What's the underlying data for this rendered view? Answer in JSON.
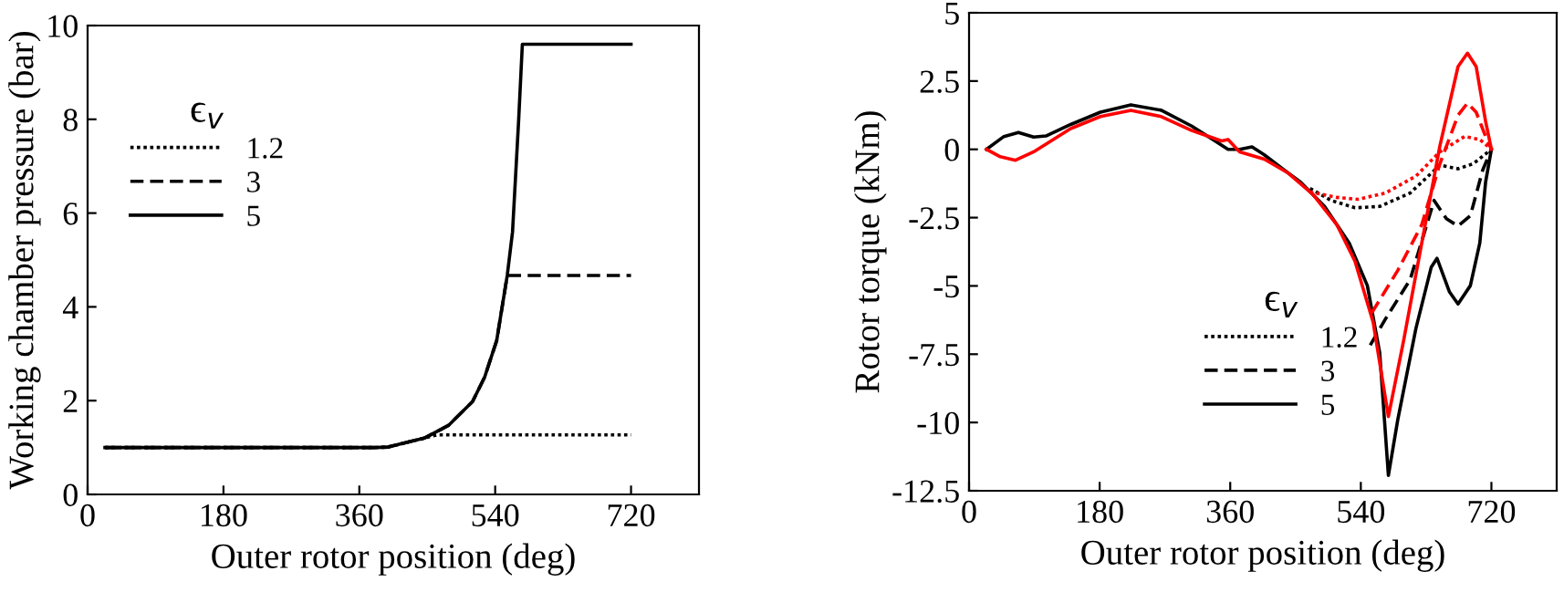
{
  "chart_data": [
    {
      "type": "line",
      "xlabel": "Outer rotor position (deg)",
      "ylabel": "Working chamber pressure (bar)",
      "legend_title": "ϵ$_{v}$",
      "legend": "top left",
      "grid": false,
      "xlim": [
        0,
        810
      ],
      "xticks": [
        0,
        180,
        360,
        540,
        720
      ],
      "ylim": [
        0,
        10
      ],
      "yticks": [
        0,
        2,
        4,
        6,
        8,
        10
      ],
      "series": [
        {
          "name": "1.2",
          "color": "#000000",
          "line_style": "dotted",
          "x": [
            23,
            380,
            398,
            446,
            463,
            720
          ],
          "values": [
            1,
            1,
            1.01,
            1.2,
            1.27,
            1.27
          ]
        },
        {
          "name": "3",
          "color": "#000000",
          "line_style": "dashed",
          "x": [
            23,
            380,
            398,
            446,
            478,
            510,
            526,
            542,
            556,
            720
          ],
          "values": [
            1,
            1,
            1.01,
            1.2,
            1.47,
            1.98,
            2.5,
            3.28,
            4.67,
            4.67
          ]
        },
        {
          "name": "5",
          "color": "#000000",
          "line_style": "solid",
          "x": [
            23,
            380,
            398,
            446,
            478,
            510,
            526,
            542,
            556,
            563,
            571,
            576,
            720
          ],
          "values": [
            1,
            1,
            1.01,
            1.2,
            1.47,
            1.98,
            2.5,
            3.28,
            4.67,
            5.6,
            7.95,
            9.6,
            9.6
          ]
        }
      ]
    },
    {
      "type": "line",
      "xlabel": "Outer rotor position (deg)",
      "ylabel": "Rotor torque (kNm)",
      "legend_title": "ϵ$_{v}$",
      "legend": "bottom left",
      "grid": false,
      "xlim": [
        0,
        810
      ],
      "xticks": [
        0,
        180,
        360,
        540,
        720
      ],
      "ylim": [
        -12.5,
        5
      ],
      "yticks": [
        {
          "value": -12.5,
          "label": "-12.5"
        },
        {
          "value": -10,
          "label": "-10"
        },
        {
          "value": -7.5,
          "label": "-7.5"
        },
        {
          "value": -5,
          "label": "-5"
        },
        {
          "value": -2.5,
          "label": "-2.5"
        },
        0,
        2.5,
        5
      ],
      "series": [
        {
          "name": "1.2",
          "color": "#000000",
          "line_style": "dotted",
          "x": [
            470,
            499,
            532,
            566,
            608,
            649,
            674,
            695,
            720
          ],
          "values": [
            -1.43,
            -1.87,
            -2.14,
            -2.09,
            -1.6,
            -0.58,
            -0.71,
            -0.53,
            0
          ]
        },
        {
          "name": "3",
          "color": "#000000",
          "line_style": "dashed",
          "x": [
            553,
            574,
            608,
            641,
            658,
            674,
            691,
            708,
            720
          ],
          "values": [
            -7.17,
            -6.21,
            -4.77,
            -1.87,
            -2.54,
            -2.81,
            -2.43,
            -0.76,
            0
          ]
        },
        {
          "name": "5",
          "color": "#000000",
          "line_style": "solid",
          "x": [
            24,
            48,
            68,
            89,
            106,
            140,
            181,
            223,
            265,
            307,
            340,
            357,
            373,
            390,
            407,
            432,
            457,
            490,
            524,
            549,
            566,
            578,
            591,
            616,
            637,
            645,
            662,
            674,
            691,
            704,
            712,
            720
          ],
          "values": [
            0,
            0.47,
            0.62,
            0.45,
            0.49,
            0.91,
            1.36,
            1.63,
            1.43,
            0.85,
            0.29,
            0,
            0,
            0.09,
            -0.2,
            -0.71,
            -1.2,
            -2.09,
            -3.43,
            -4.99,
            -7.44,
            -11.94,
            -9.89,
            -6.55,
            -4.32,
            -3.99,
            -5.21,
            -5.66,
            -4.99,
            -3.43,
            -1.2,
            0
          ]
        },
        {
          "color": "#ff0000",
          "line_style": "dotted",
          "x": [
            470,
            507,
            536,
            574,
            616,
            649,
            683,
            704,
            720
          ],
          "values": [
            -1.56,
            -1.76,
            -1.83,
            -1.6,
            -0.98,
            -0.09,
            0.47,
            0.36,
            0
          ]
        },
        {
          "color": "#ff0000",
          "line_style": "dashed",
          "x": [
            555,
            591,
            624,
            649,
            674,
            687,
            699,
            712,
            720
          ],
          "values": [
            -5.99,
            -4.43,
            -2.76,
            -0.53,
            1.25,
            1.69,
            1.36,
            0.47,
            0
          ]
        },
        {
          "color": "#ff0000",
          "line_style": "solid",
          "x": [
            24,
            43,
            64,
            89,
            140,
            181,
            223,
            265,
            307,
            348,
            357,
            373,
            407,
            440,
            474,
            507,
            532,
            557,
            578,
            599,
            624,
            649,
            674,
            687,
            699,
            712,
            720
          ],
          "values": [
            0,
            -0.27,
            -0.4,
            -0.09,
            0.76,
            1.2,
            1.43,
            1.2,
            0.69,
            0.31,
            0.36,
            -0.09,
            -0.36,
            -0.87,
            -1.65,
            -2.76,
            -4.1,
            -6.33,
            -9.78,
            -7.0,
            -3.43,
            0.13,
            3.03,
            3.52,
            3.03,
            1.02,
            0
          ]
        }
      ]
    }
  ]
}
